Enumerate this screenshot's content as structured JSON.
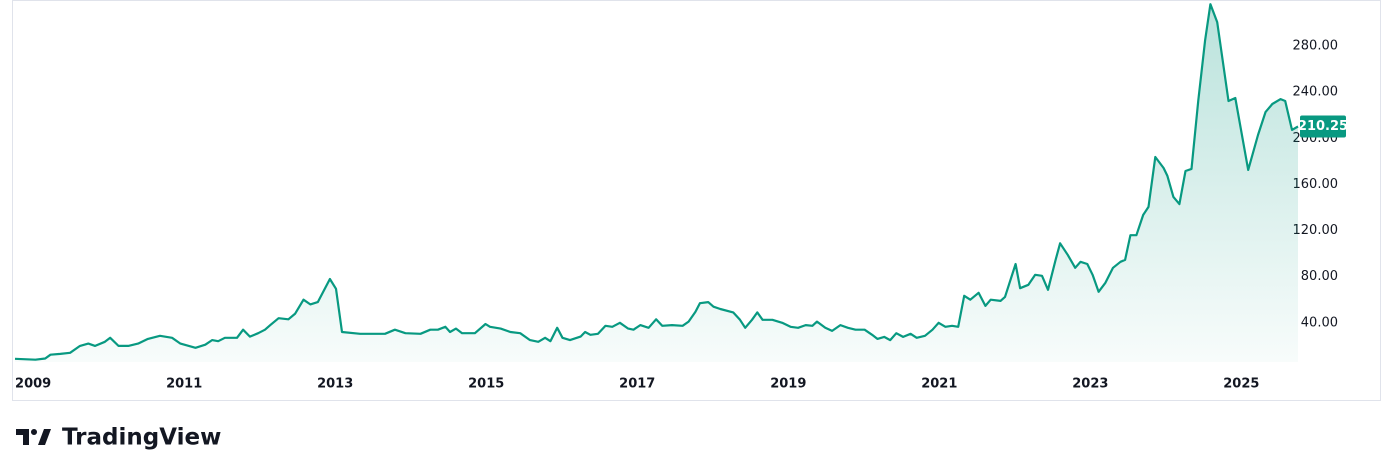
{
  "chart_data": {
    "type": "area",
    "x": [
      2008.76,
      2009.03,
      2009.16,
      2009.23,
      2009.36,
      2009.49,
      2009.62,
      2009.73,
      2009.82,
      2009.95,
      2010.02,
      2010.13,
      2010.26,
      2010.39,
      2010.52,
      2010.68,
      2010.84,
      2010.95,
      2011.15,
      2011.28,
      2011.37,
      2011.45,
      2011.54,
      2011.7,
      2011.78,
      2011.87,
      2011.98,
      2012.07,
      2012.14,
      2012.25,
      2012.38,
      2012.47,
      2012.58,
      2012.67,
      2012.77,
      2012.93,
      2013.01,
      2013.09,
      2013.33,
      2013.66,
      2013.79,
      2013.93,
      2014.13,
      2014.26,
      2014.36,
      2014.46,
      2014.52,
      2014.6,
      2014.68,
      2014.85,
      2014.99,
      2015.05,
      2015.19,
      2015.32,
      2015.45,
      2015.58,
      2015.69,
      2015.78,
      2015.85,
      2015.94,
      2016.01,
      2016.11,
      2016.25,
      2016.31,
      2016.38,
      2016.48,
      2016.58,
      2016.67,
      2016.77,
      2016.88,
      2016.95,
      2017.04,
      2017.15,
      2017.25,
      2017.33,
      2017.46,
      2017.6,
      2017.68,
      2017.77,
      2017.83,
      2017.94,
      2018.01,
      2018.1,
      2018.27,
      2018.36,
      2018.43,
      2018.52,
      2018.59,
      2018.66,
      2018.79,
      2018.92,
      2019.03,
      2019.13,
      2019.23,
      2019.32,
      2019.38,
      2019.49,
      2019.58,
      2019.69,
      2019.79,
      2019.89,
      2020.01,
      2020.11,
      2020.18,
      2020.27,
      2020.35,
      2020.43,
      2020.52,
      2020.62,
      2020.7,
      2020.81,
      2020.91,
      2020.99,
      2021.08,
      2021.17,
      2021.25,
      2021.33,
      2021.41,
      2021.52,
      2021.61,
      2021.68,
      2021.81,
      2021.87,
      2022.01,
      2022.07,
      2022.18,
      2022.27,
      2022.36,
      2022.44,
      2022.54,
      2022.6,
      2022.7,
      2022.8,
      2022.87,
      2022.96,
      2023.03,
      2023.11,
      2023.2,
      2023.3,
      2023.4,
      2023.46,
      2023.53,
      2023.61,
      2023.7,
      2023.77,
      2023.86,
      2023.97,
      2024.02,
      2024.1,
      2024.18,
      2024.26,
      2024.34,
      2024.43,
      2024.52,
      2024.59,
      2024.68,
      2024.83,
      2024.92,
      2025.09,
      2025.22,
      2025.32,
      2025.41,
      2025.52,
      2025.58,
      2025.67,
      2025.75
    ],
    "values": [
      8.8,
      8,
      9,
      12.3,
      13,
      14,
      20,
      22,
      20,
      23.5,
      27,
      20,
      20,
      22,
      26,
      28.7,
      27,
      22,
      18.3,
      21,
      25,
      24,
      27,
      27,
      34,
      28,
      31,
      34,
      38,
      44,
      43,
      48,
      60,
      56,
      58,
      78,
      69.5,
      32,
      30.5,
      30.5,
      34,
      31,
      30.5,
      34,
      34,
      36.5,
      32,
      35,
      31,
      31,
      39,
      36.5,
      35,
      32,
      31,
      25,
      23.5,
      27,
      24,
      35.7,
      27,
      25,
      28,
      32,
      29.6,
      30.5,
      37.4,
      36.5,
      40,
      35,
      34,
      38,
      35.7,
      43,
      37.4,
      38,
      37.4,
      41,
      49.5,
      57,
      58,
      54,
      52,
      49,
      42.6,
      35.7,
      42.6,
      49,
      42.6,
      42.6,
      40,
      36.5,
      35.7,
      38,
      37.4,
      41,
      35.7,
      33,
      38,
      35.7,
      34,
      34,
      29.6,
      26,
      27.8,
      25,
      31,
      27.8,
      30.5,
      27,
      28.7,
      34,
      40,
      36.5,
      37.4,
      36.5,
      63.4,
      60,
      66,
      54.7,
      60,
      59,
      62.5,
      91,
      70,
      73,
      81.6,
      80.8,
      68.6,
      94.6,
      109,
      99,
      87.7,
      92.9,
      91,
      81.6,
      66.9,
      74.7,
      87.7,
      92.9,
      94.6,
      116,
      116,
      133.6,
      140.5,
      183.8,
      174.3,
      167.4,
      149.2,
      143,
      171.7,
      173.5,
      233,
      285,
      316.4,
      300.8,
      232.4,
      235,
      172.6,
      202.9,
      222.8,
      229.8,
      234,
      232.4,
      207.3,
      210.25
    ],
    "color": "#089981",
    "xlim": [
      2008.72,
      2025.75
    ],
    "xticks": [
      2009,
      2011,
      2013,
      2015,
      2017,
      2019,
      2021,
      2023,
      2025
    ],
    "ylim": [
      6,
      320
    ],
    "yticks": [
      {
        "value": 40,
        "label": "40.00"
      },
      {
        "value": 80,
        "label": "80.00"
      },
      {
        "value": 120,
        "label": "120.00"
      },
      {
        "value": 160,
        "label": "160.00"
      },
      {
        "value": 200,
        "label": "200.00"
      },
      {
        "value": 240,
        "label": "240.00"
      },
      {
        "value": 280,
        "label": "280.00"
      }
    ],
    "current_price": {
      "value": 210.25,
      "label": "210.25"
    },
    "brand": "TradingView"
  }
}
